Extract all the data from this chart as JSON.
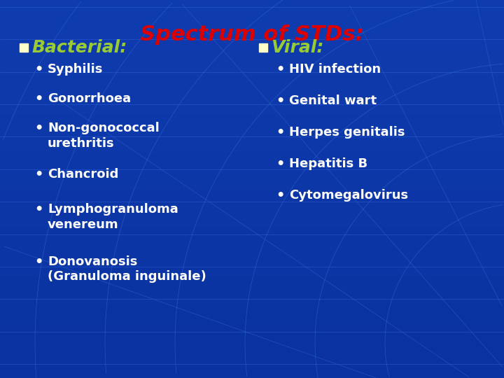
{
  "title": "Spectrum of STDs:",
  "title_color": "#dd0000",
  "bg_color": "#1a5cd4",
  "bg_dark": "#0a3aaa",
  "heading_color": "#99cc33",
  "bullet_color": "#ffffff",
  "square_color": "#ffffcc",
  "left_heading": "Bacterial:",
  "right_heading": "Viral:",
  "left_bullets": [
    "Syphilis",
    "Gonorrhoea",
    "Non-gonococcal\nurethritis",
    "Chancroid",
    "Lymphogranuloma\nvenereum",
    "Donovanosis\n(Granuloma inguinale)"
  ],
  "right_bullets": [
    "HIV infection",
    "Genital wart",
    "Herpes genitalis",
    "Hepatitis B",
    "Cytomegalovirus"
  ],
  "title_fontsize": 22,
  "heading_fontsize": 18,
  "bullet_fontsize": 13
}
